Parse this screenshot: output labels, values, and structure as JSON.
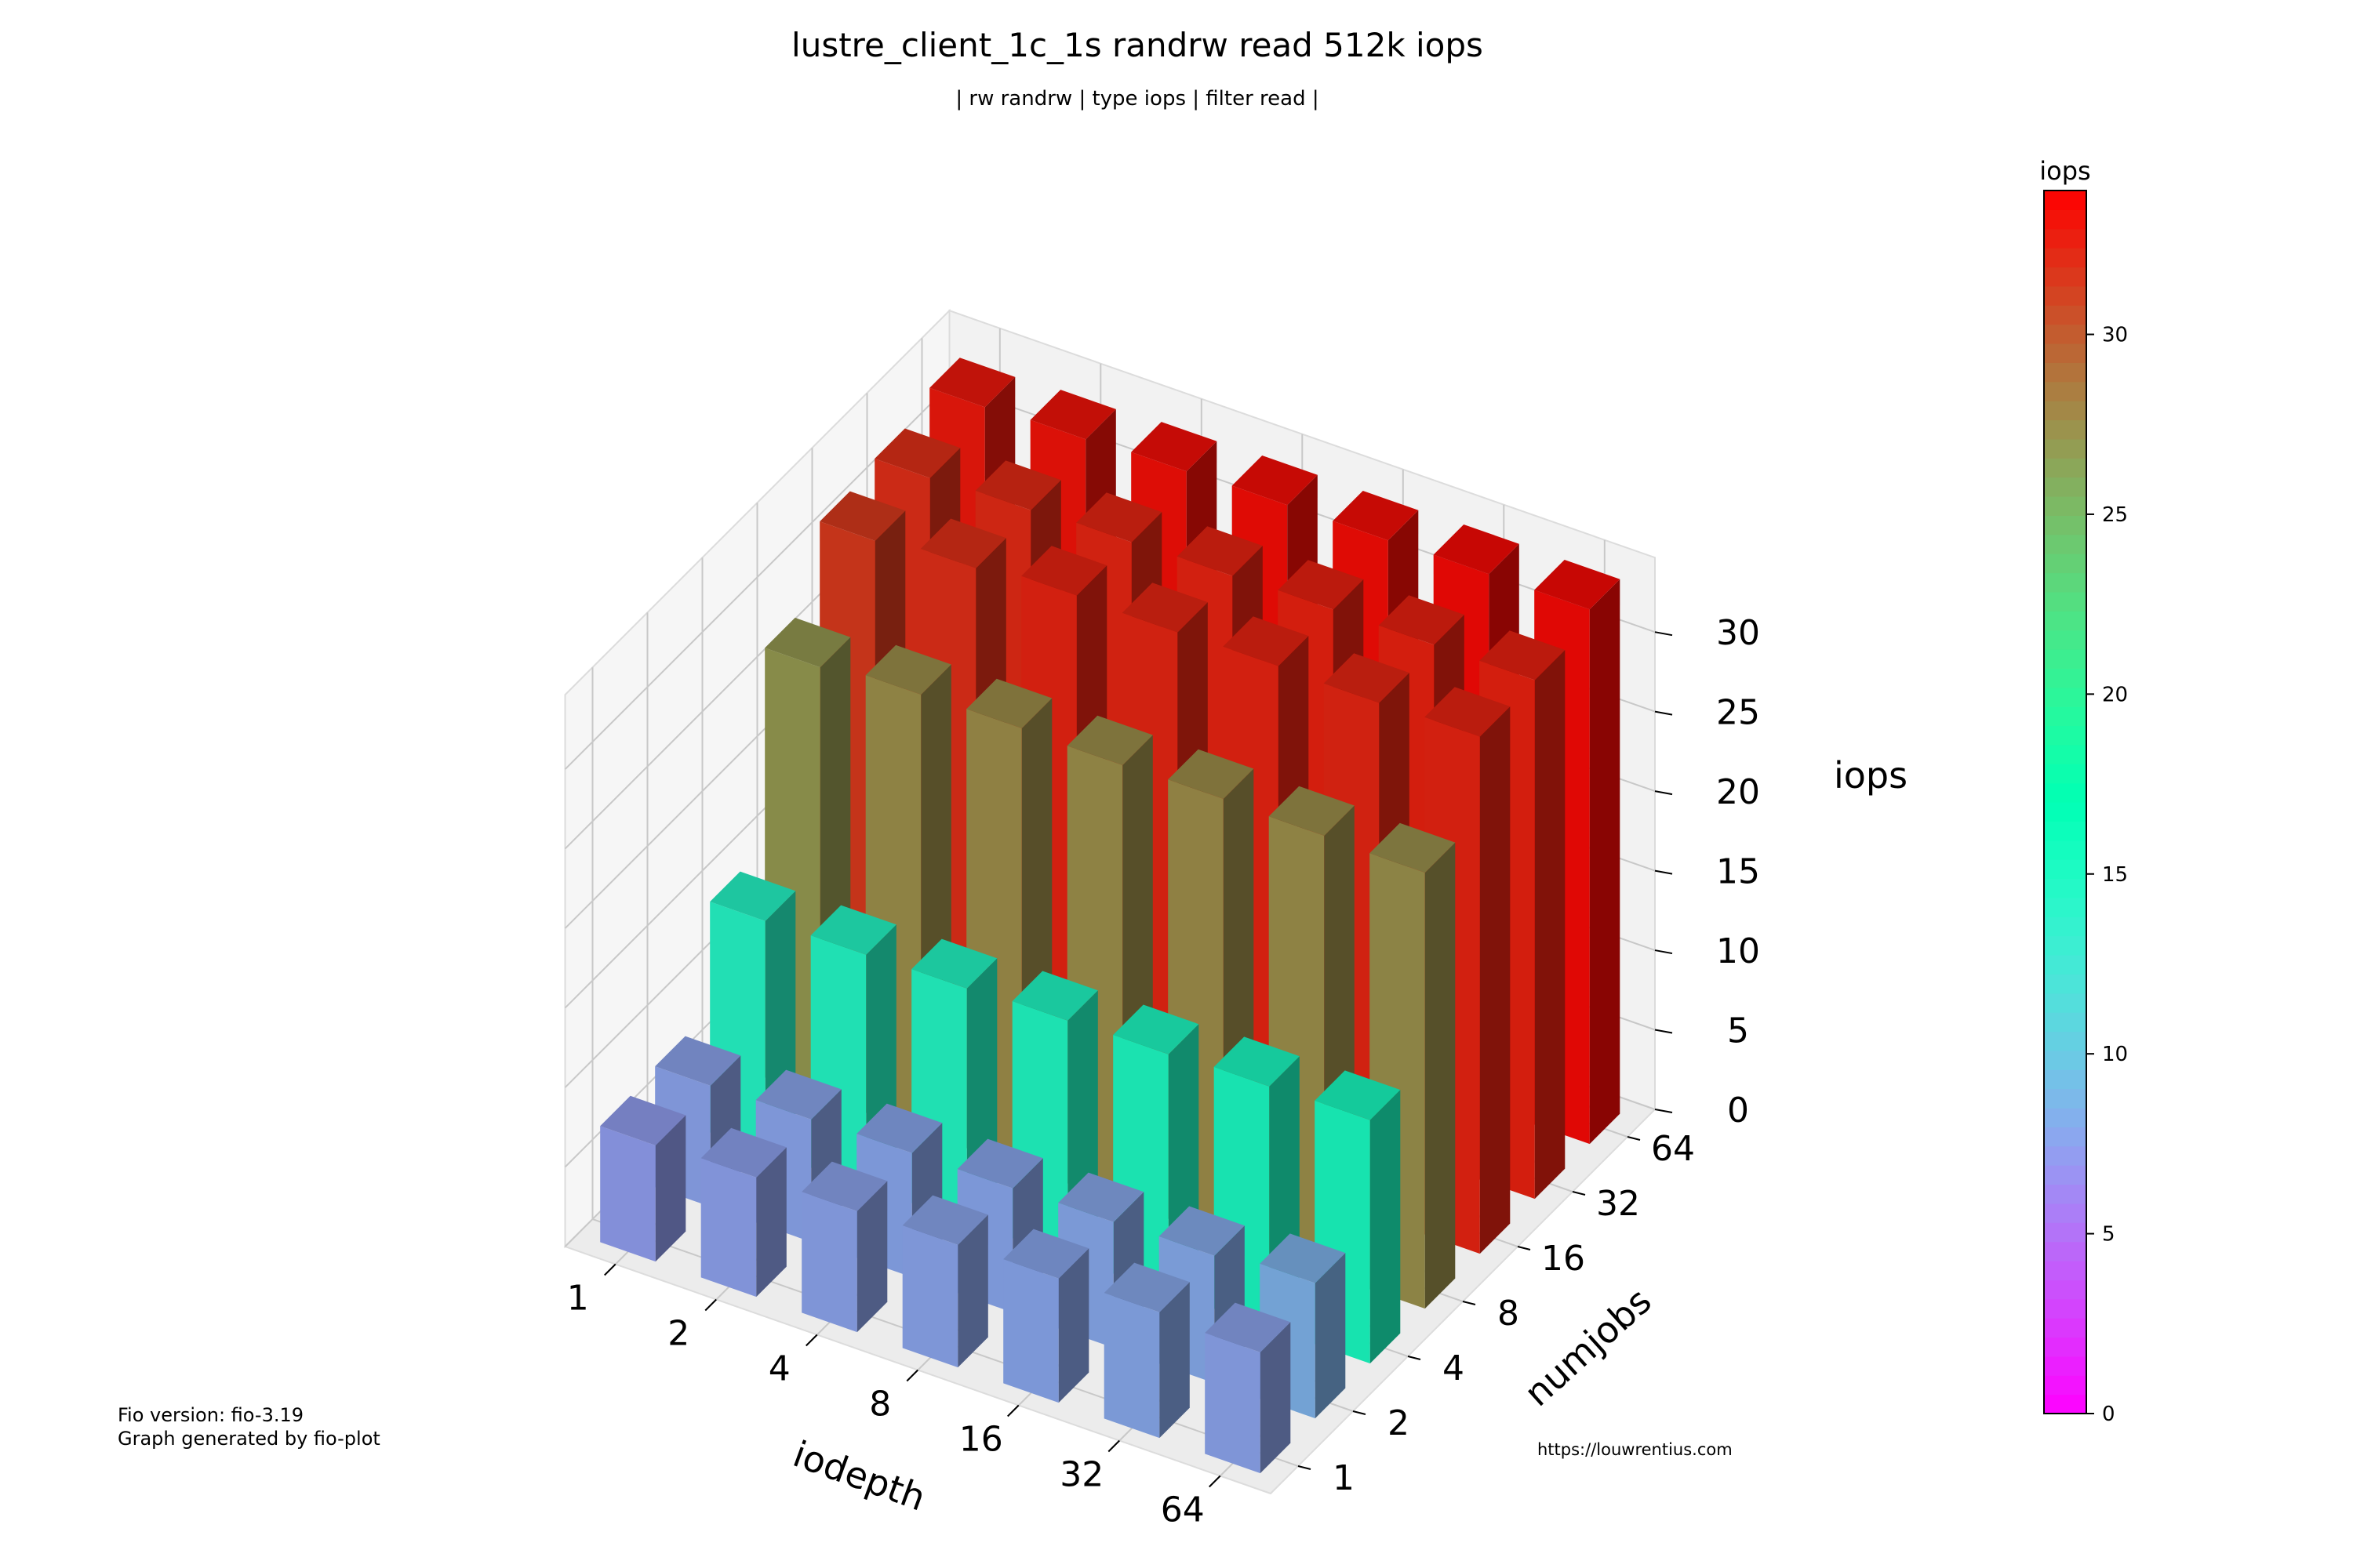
{
  "chart_data": {
    "type": "bar3d",
    "title": "lustre_client_1c_1s randrw read 512k iops",
    "subtitle": "| rw randrw | type iops | filter read |",
    "xlabel": "iodepth",
    "ylabel": "numjobs",
    "zlabel": "iops",
    "x_categories": [
      "1",
      "2",
      "4",
      "8",
      "16",
      "32",
      "64"
    ],
    "y_categories": [
      "1",
      "2",
      "4",
      "8",
      "16",
      "32",
      "64"
    ],
    "z_ticks": [
      0,
      5,
      10,
      15,
      20,
      25,
      30
    ],
    "zlim": [
      0,
      34
    ],
    "grid": true,
    "colorbar": {
      "label": "iops",
      "ticks": [
        0,
        5,
        10,
        15,
        20,
        25,
        30
      ],
      "range": [
        0,
        34
      ],
      "colormap": "rainbow"
    },
    "values_by_numjobs": [
      {
        "numjobs": "1",
        "values": [
          7.3,
          7.5,
          7.6,
          7.7,
          7.8,
          7.9,
          7.6
        ]
      },
      {
        "numjobs": "2",
        "values": [
          7.6,
          7.7,
          7.8,
          7.8,
          7.9,
          8.0,
          8.5
        ]
      },
      {
        "numjobs": "4",
        "values": [
          14.5,
          14.6,
          14.7,
          14.9,
          15.0,
          15.2,
          15.3
        ]
      },
      {
        "numjobs": "8",
        "values": [
          27.0,
          27.5,
          27.6,
          27.5,
          27.6,
          27.5,
          27.4
        ]
      },
      {
        "numjobs": "16",
        "values": [
          31.5,
          32.0,
          32.5,
          32.4,
          32.5,
          32.4,
          32.5
        ]
      },
      {
        "numjobs": "32",
        "values": [
          32.0,
          32.2,
          32.4,
          32.5,
          32.6,
          32.6,
          32.6
        ]
      },
      {
        "numjobs": "64",
        "values": [
          33.0,
          33.2,
          33.4,
          33.5,
          33.5,
          33.6,
          33.6
        ]
      }
    ]
  },
  "footer": {
    "fio_version": "Fio version: fio-3.19",
    "generated_by": "Graph generated by fio-plot",
    "url": "https://louwrentius.com"
  }
}
